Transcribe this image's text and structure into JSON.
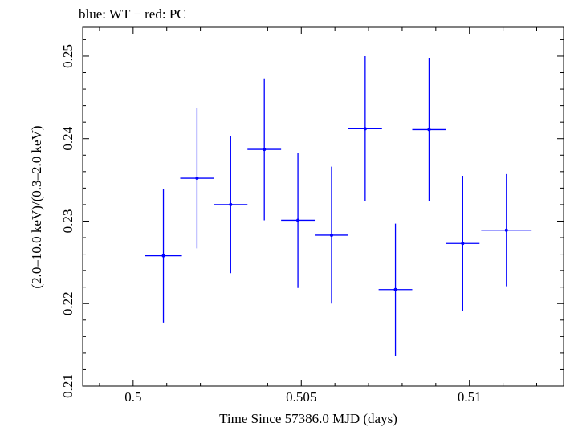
{
  "chart_data": {
    "type": "scatter",
    "title": "blue: WT − red: PC",
    "xlabel": "Time Since 57386.0 MJD (days)",
    "ylabel": "(2.0–10.0 keV)/(0.3–2.0 keV)",
    "xlim": [
      0.4985,
      0.5128
    ],
    "ylim": [
      0.21,
      0.2535
    ],
    "x_ticks": [
      0.5,
      0.505,
      0.51
    ],
    "x_tick_labels": [
      "0.5",
      "0.505",
      "0.51"
    ],
    "y_ticks": [
      0.21,
      0.22,
      0.23,
      0.24,
      0.25
    ],
    "y_tick_labels": [
      "0.21",
      "0.22",
      "0.23",
      "0.24",
      "0.25"
    ],
    "grid": false,
    "series": [
      {
        "color": "#0000ff",
        "points": [
          {
            "x": 0.5009,
            "xerr": 0.00055,
            "y": 0.2258,
            "yerr": 0.0081
          },
          {
            "x": 0.5019,
            "xerr": 0.0005,
            "y": 0.2352,
            "yerr": 0.0085
          },
          {
            "x": 0.5029,
            "xerr": 0.0005,
            "y": 0.232,
            "yerr": 0.0083
          },
          {
            "x": 0.5039,
            "xerr": 0.0005,
            "y": 0.2387,
            "yerr": 0.0086
          },
          {
            "x": 0.5049,
            "xerr": 0.0005,
            "y": 0.2301,
            "yerr": 0.0082
          },
          {
            "x": 0.5059,
            "xerr": 0.0005,
            "y": 0.2283,
            "yerr": 0.0083
          },
          {
            "x": 0.5069,
            "xerr": 0.0005,
            "y": 0.2412,
            "yerr": 0.0088
          },
          {
            "x": 0.5078,
            "xerr": 0.0005,
            "y": 0.2217,
            "yerr": 0.008
          },
          {
            "x": 0.5088,
            "xerr": 0.0005,
            "y": 0.2411,
            "yerr": 0.0087
          },
          {
            "x": 0.5098,
            "xerr": 0.0005,
            "y": 0.2273,
            "yerr": 0.0082
          },
          {
            "x": 0.5111,
            "xerr": 0.00075,
            "y": 0.2289,
            "yerr": 0.0068
          }
        ]
      }
    ]
  }
}
